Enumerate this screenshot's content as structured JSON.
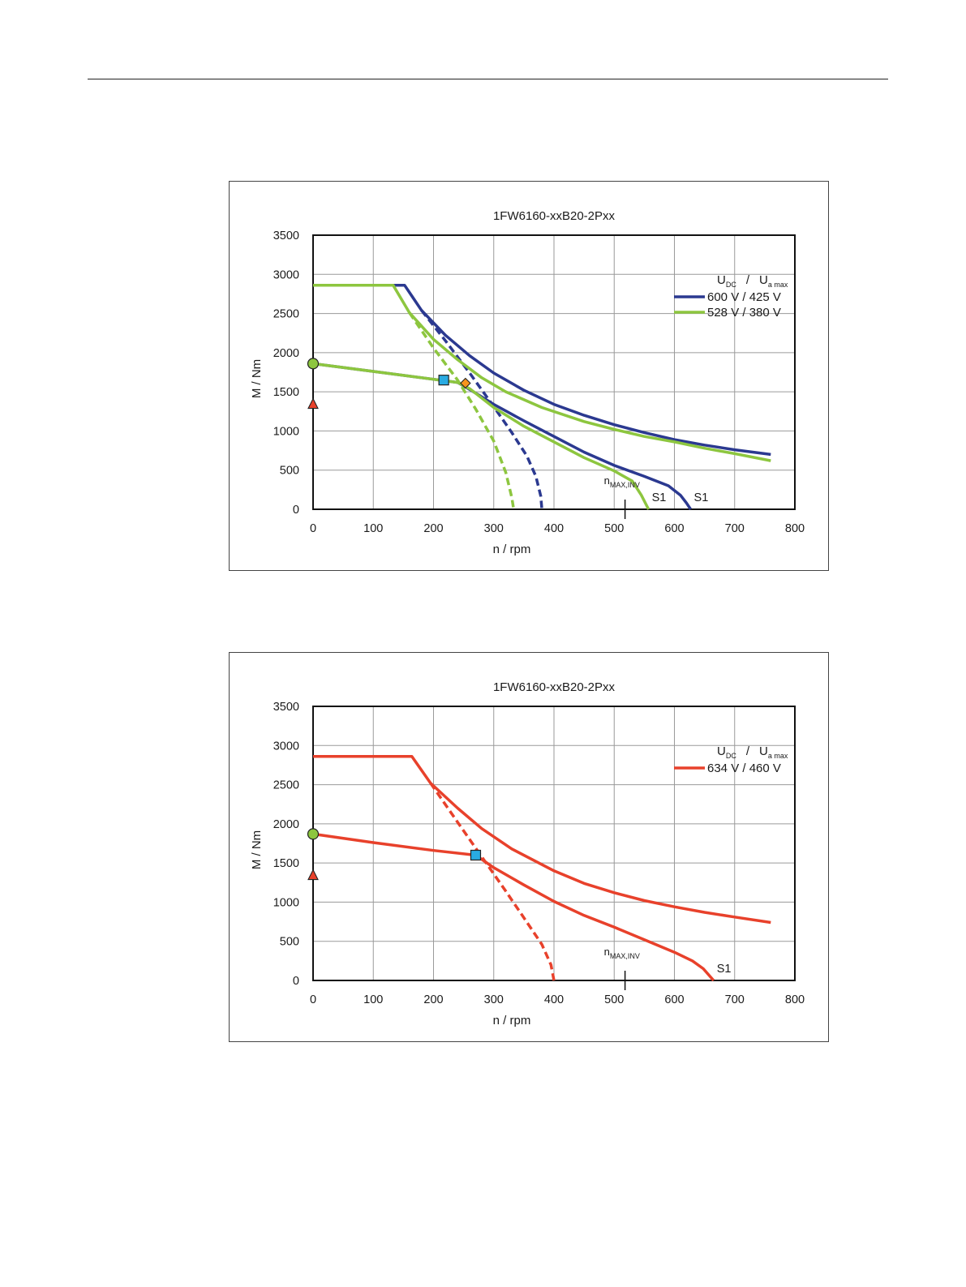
{
  "chart_data": [
    {
      "type": "line",
      "title": "1FW6160-xxB20-2Pxx",
      "xlabel": "n / rpm",
      "ylabel": "M / Nm",
      "xlim": [
        0,
        800
      ],
      "ylim": [
        0,
        3500
      ],
      "xticks": [
        "0",
        "100",
        "200",
        "300",
        "400",
        "500",
        "600",
        "700",
        "800"
      ],
      "yticks": [
        "0",
        "500",
        "1000",
        "1500",
        "2000",
        "2500",
        "3000",
        "3500"
      ],
      "grid": true,
      "legend_position": "top-right",
      "legend_title": {
        "u": "U",
        "dc": "DC",
        "sep": "/",
        "u2": "U",
        "amax": "a max"
      },
      "nmax_label": {
        "n": "n",
        "sub": "MAX,INV"
      },
      "nmax_rpm": 518,
      "series": [
        {
          "name": "600 V / 425 V",
          "color": "#2b3990",
          "curves": {
            "max": [
              [
                0,
                2860
              ],
              [
                152,
                2860
              ],
              [
                180,
                2540
              ],
              [
                220,
                2220
              ],
              [
                260,
                1960
              ],
              [
                300,
                1740
              ],
              [
                350,
                1520
              ],
              [
                400,
                1340
              ],
              [
                450,
                1200
              ],
              [
                500,
                1080
              ],
              [
                550,
                980
              ],
              [
                600,
                890
              ],
              [
                650,
                820
              ],
              [
                700,
                760
              ],
              [
                760,
                700
              ]
            ],
            "s1": [
              [
                0,
                1860
              ],
              [
                100,
                1760
              ],
              [
                200,
                1660
              ],
              [
                220,
                1640
              ],
              [
                240,
                1620
              ],
              [
                260,
                1530
              ],
              [
                300,
                1340
              ],
              [
                350,
                1130
              ],
              [
                400,
                930
              ],
              [
                450,
                730
              ],
              [
                500,
                560
              ],
              [
                550,
                420
              ],
              [
                590,
                300
              ],
              [
                610,
                180
              ],
              [
                620,
                80
              ],
              [
                627,
                0
              ]
            ],
            "dashed": [
              [
                180,
                2540
              ],
              [
                220,
                2150
              ],
              [
                260,
                1740
              ],
              [
                300,
                1310
              ],
              [
                330,
                980
              ],
              [
                355,
                680
              ],
              [
                370,
                420
              ],
              [
                378,
                170
              ],
              [
                380,
                0
              ]
            ]
          },
          "s1_label": "S1"
        },
        {
          "name": "528 V / 380 V",
          "color": "#8dc63f",
          "curves": {
            "max": [
              [
                0,
                2860
              ],
              [
                133,
                2860
              ],
              [
                160,
                2510
              ],
              [
                200,
                2170
              ],
              [
                240,
                1910
              ],
              [
                280,
                1680
              ],
              [
                320,
                1500
              ],
              [
                380,
                1300
              ],
              [
                450,
                1120
              ],
              [
                500,
                1020
              ],
              [
                550,
                930
              ],
              [
                600,
                860
              ],
              [
                650,
                780
              ],
              [
                700,
                710
              ],
              [
                760,
                620
              ]
            ],
            "s1": [
              [
                0,
                1860
              ],
              [
                100,
                1760
              ],
              [
                200,
                1660
              ],
              [
                240,
                1620
              ],
              [
                260,
                1540
              ],
              [
                300,
                1300
              ],
              [
                350,
                1060
              ],
              [
                400,
                860
              ],
              [
                450,
                660
              ],
              [
                500,
                490
              ],
              [
                530,
                360
              ],
              [
                545,
                180
              ],
              [
                557,
                0
              ]
            ],
            "dashed": [
              [
                160,
                2510
              ],
              [
                200,
                2060
              ],
              [
                240,
                1650
              ],
              [
                270,
                1280
              ],
              [
                300,
                870
              ],
              [
                320,
                470
              ],
              [
                330,
                150
              ],
              [
                333,
                0
              ]
            ]
          },
          "s1_label": "S1"
        }
      ],
      "markers": [
        {
          "shape": "circle",
          "color": "#8dc63f",
          "x": 0,
          "y": 1860
        },
        {
          "shape": "triangle",
          "color": "#e8412b",
          "x": 0,
          "y": 1340
        },
        {
          "shape": "square",
          "color": "#29abe2",
          "x": 217,
          "y": 1650
        },
        {
          "shape": "diamond",
          "color": "#f7941d",
          "x": 253,
          "y": 1610
        }
      ]
    },
    {
      "type": "line",
      "title": "1FW6160-xxB20-2Pxx",
      "xlabel": "n / rpm",
      "ylabel": "M / Nm",
      "xlim": [
        0,
        800
      ],
      "ylim": [
        0,
        3500
      ],
      "xticks": [
        "0",
        "100",
        "200",
        "300",
        "400",
        "500",
        "600",
        "700",
        "800"
      ],
      "yticks": [
        "0",
        "500",
        "1000",
        "1500",
        "2000",
        "2500",
        "3000",
        "3500"
      ],
      "grid": true,
      "legend_position": "top-right",
      "legend_title": {
        "u": "U",
        "dc": "DC",
        "sep": "/",
        "u2": "U",
        "amax": "a max"
      },
      "nmax_label": {
        "n": "n",
        "sub": "MAX,INV"
      },
      "nmax_rpm": 518,
      "series": [
        {
          "name": "634 V / 460 V",
          "color": "#e8412b",
          "curves": {
            "max": [
              [
                0,
                2860
              ],
              [
                164,
                2860
              ],
              [
                195,
                2520
              ],
              [
                240,
                2200
              ],
              [
                280,
                1940
              ],
              [
                330,
                1680
              ],
              [
                400,
                1400
              ],
              [
                450,
                1240
              ],
              [
                500,
                1120
              ],
              [
                550,
                1020
              ],
              [
                600,
                940
              ],
              [
                650,
                870
              ],
              [
                700,
                810
              ],
              [
                760,
                740
              ]
            ],
            "s1": [
              [
                0,
                1870
              ],
              [
                100,
                1760
              ],
              [
                200,
                1660
              ],
              [
                270,
                1600
              ],
              [
                300,
                1440
              ],
              [
                350,
                1220
              ],
              [
                400,
                1010
              ],
              [
                450,
                830
              ],
              [
                500,
                680
              ],
              [
                550,
                520
              ],
              [
                600,
                360
              ],
              [
                630,
                250
              ],
              [
                648,
                150
              ],
              [
                665,
                0
              ]
            ],
            "dashed": [
              [
                195,
                2520
              ],
              [
                240,
                2020
              ],
              [
                280,
                1580
              ],
              [
                320,
                1140
              ],
              [
                350,
                800
              ],
              [
                380,
                460
              ],
              [
                395,
                200
              ],
              [
                400,
                0
              ]
            ]
          },
          "s1_label": "S1"
        }
      ],
      "markers": [
        {
          "shape": "circle",
          "color": "#8dc63f",
          "x": 0,
          "y": 1870
        },
        {
          "shape": "triangle",
          "color": "#e8412b",
          "x": 0,
          "y": 1340
        },
        {
          "shape": "square",
          "color": "#29abe2",
          "x": 270,
          "y": 1600
        }
      ]
    }
  ]
}
